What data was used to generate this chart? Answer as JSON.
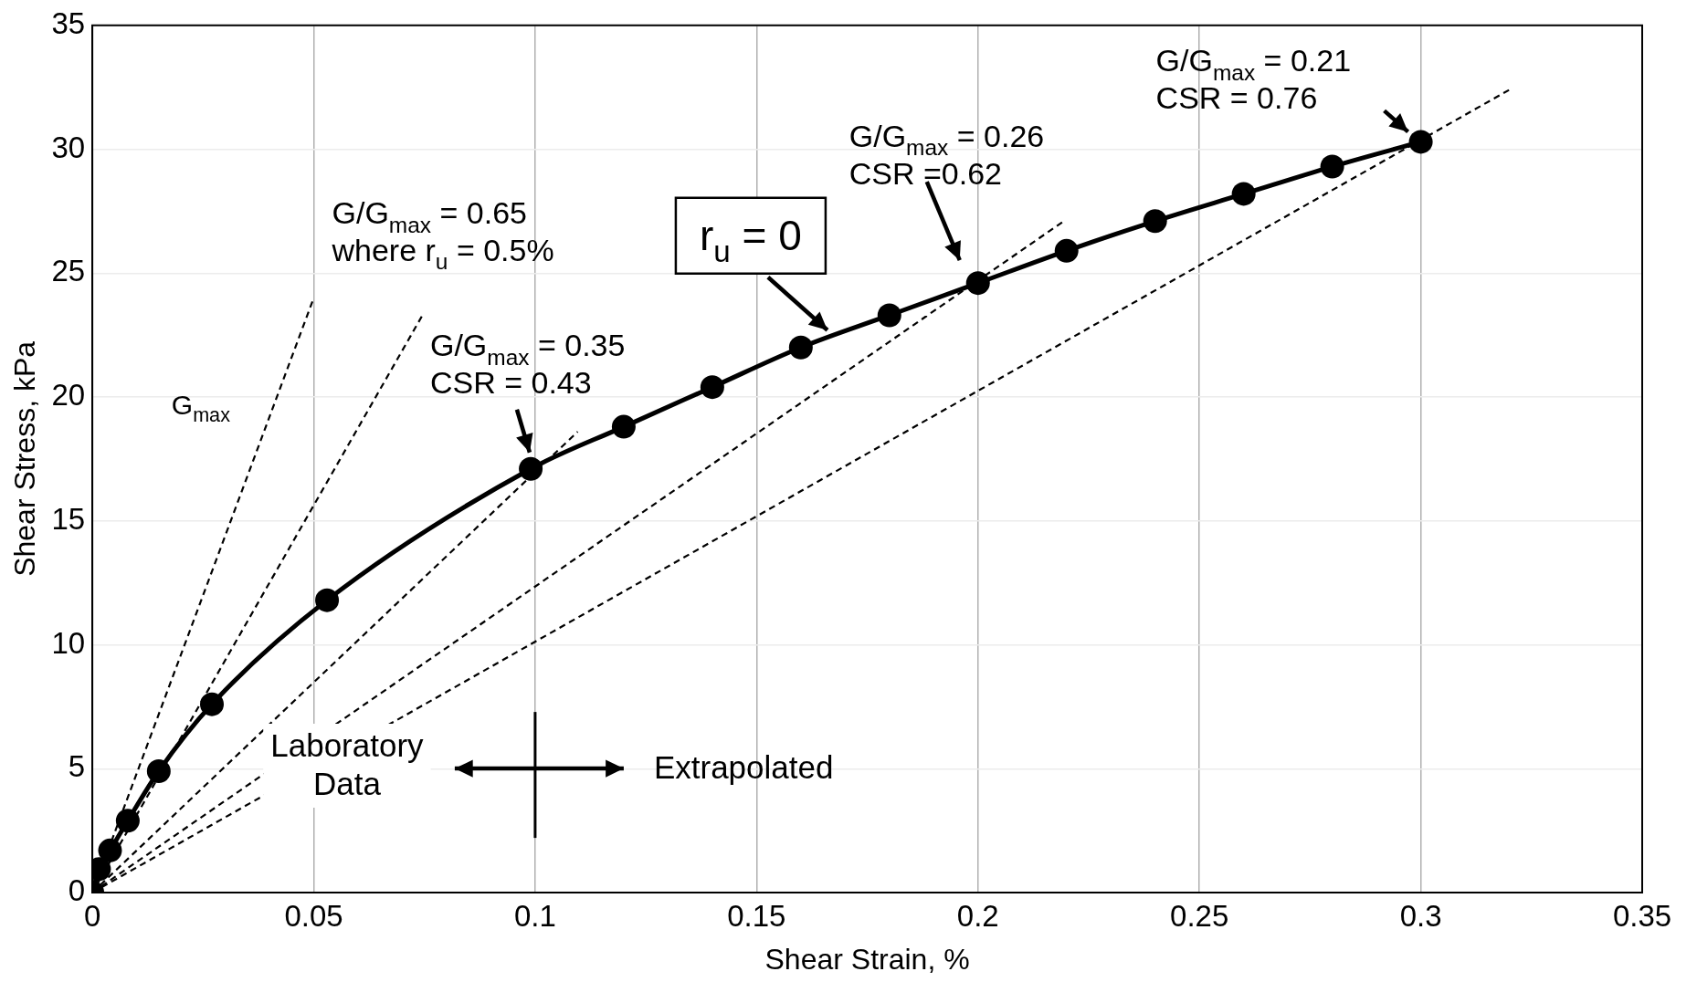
{
  "chart_data": {
    "type": "line",
    "xlabel": "Shear Strain, %",
    "ylabel": "Shear Stress, kPa",
    "xlim": [
      0,
      0.35
    ],
    "ylim": [
      0,
      35
    ],
    "xticks": [
      0,
      0.05,
      0.1,
      0.15,
      0.2,
      0.25,
      0.3,
      0.35
    ],
    "yticks": [
      0,
      5,
      10,
      15,
      20,
      25,
      30,
      35
    ],
    "grid": true,
    "series": [
      {
        "color": "#000000",
        "line_style": "dashed",
        "x": [
          0,
          0.05
        ],
        "values": [
          0,
          24.0
        ]
      },
      {
        "color": "#000000",
        "line_style": "dashed",
        "x": [
          0,
          0.0747
        ],
        "values": [
          0,
          23.35
        ]
      },
      {
        "color": "#000000",
        "line_style": "dashed",
        "x": [
          0,
          0.1096
        ],
        "values": [
          0,
          18.6
        ]
      },
      {
        "color": "#000000",
        "line_style": "dashed",
        "x": [
          0,
          0.219
        ],
        "values": [
          0,
          27.05
        ]
      },
      {
        "color": "#000000",
        "line_style": "dashed",
        "x": [
          0,
          0.32
        ],
        "values": [
          0,
          32.4
        ]
      },
      {
        "color": "#000000",
        "marker": "circle",
        "line_style": "solid",
        "x": [
          0,
          0.0015,
          0.004,
          0.008,
          0.015,
          0.027,
          0.053,
          0.099,
          0.12,
          0.14,
          0.16,
          0.18,
          0.2,
          0.22,
          0.24,
          0.26,
          0.28,
          0.3
        ],
        "values": [
          0,
          0.95,
          1.7,
          2.9,
          4.9,
          7.6,
          11.8,
          17.1,
          18.8,
          20.4,
          22.0,
          23.3,
          24.6,
          25.9,
          27.1,
          28.2,
          29.3,
          30.3
        ]
      }
    ],
    "annotations": [
      {
        "text": "G$_{max}$",
        "x": 0.035,
        "y": 16.8
      },
      {
        "text": "G/G$_{max}$ = 0.65\nwhere r$_{u}$ = 0.5%",
        "x": 0.07,
        "y": 21.9
      },
      {
        "text": "G/G$_{max}$ = 0.35\nCSR = 0.43",
        "x": 0.1,
        "y": 17.1
      },
      {
        "text": "G/G$_{max}$ = 0.26\nCSR =0.62",
        "x": 0.2,
        "y": 24.6
      },
      {
        "text": "G/G$_{max}$ = 0.21\nCSR = 0.76",
        "x": 0.3,
        "y": 30.3
      },
      {
        "text": "r$_{u}$ = 0",
        "x": 0.166,
        "y": 22.7
      },
      "Laboratory\nData",
      "Extrapolated"
    ]
  }
}
